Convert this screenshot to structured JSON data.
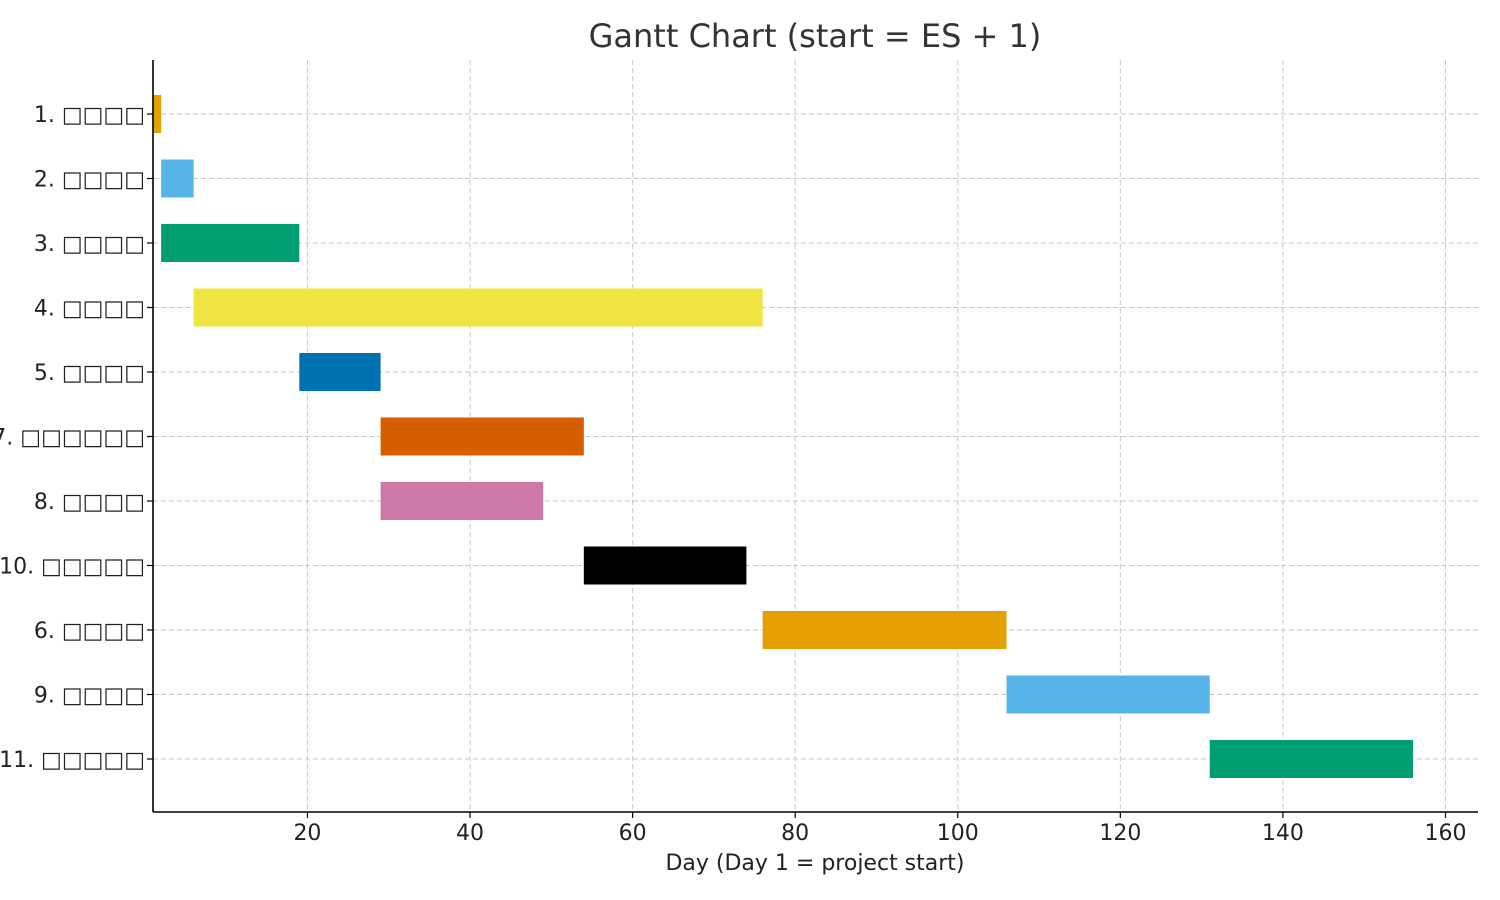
{
  "chart_data": {
    "type": "bar",
    "orientation": "horizontal",
    "title": "Gantt Chart (start = ES + 1)",
    "xlabel": "Day (Day 1 = project start)",
    "ylabel": "",
    "xlim": [
      1,
      164
    ],
    "xticks": [
      20,
      40,
      60,
      80,
      100,
      120,
      140,
      160
    ],
    "grid": true,
    "tasks": [
      {
        "label": "1. □□□□",
        "start": 1,
        "end": 2,
        "color": "#E69F00"
      },
      {
        "label": "2. □□□□",
        "start": 2,
        "end": 6,
        "color": "#56B4E9"
      },
      {
        "label": "3. □□□□",
        "start": 2,
        "end": 19,
        "color": "#009E73"
      },
      {
        "label": "4. □□□□",
        "start": 6,
        "end": 76,
        "color": "#F0E442"
      },
      {
        "label": "5. □□□□",
        "start": 19,
        "end": 29,
        "color": "#0072B2"
      },
      {
        "label": "7. □□□□□□",
        "start": 29,
        "end": 54,
        "color": "#D55E00"
      },
      {
        "label": "8. □□□□",
        "start": 29,
        "end": 49,
        "color": "#CC79A7"
      },
      {
        "label": "10. □□□□□",
        "start": 54,
        "end": 74,
        "color": "#000000"
      },
      {
        "label": "6. □□□□",
        "start": 76,
        "end": 106,
        "color": "#E69F00"
      },
      {
        "label": "9. □□□□",
        "start": 106,
        "end": 131,
        "color": "#56B4E9"
      },
      {
        "label": "11. □□□□□",
        "start": 131,
        "end": 156,
        "color": "#009E73"
      }
    ]
  }
}
